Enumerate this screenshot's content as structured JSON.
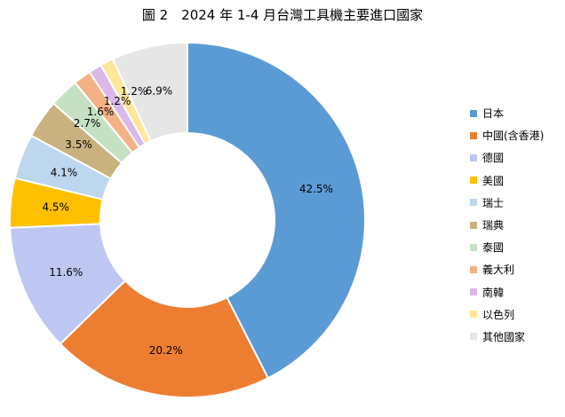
{
  "chart_data": {
    "type": "pie",
    "title": "圖 2　2024 年 1-4 月台灣工具機主要進口國家",
    "categories": [
      "日本",
      "中國(含香港)",
      "德國",
      "美國",
      "瑞士",
      "瑞典",
      "泰國",
      "義大利",
      "南韓",
      "以色列",
      "其他國家"
    ],
    "values": [
      42.5,
      20.2,
      11.6,
      4.5,
      4.1,
      3.5,
      2.7,
      1.6,
      1.2,
      1.2,
      6.9
    ],
    "labels": [
      "42.5%",
      "20.2%",
      "11.6%",
      "4.5%",
      "4.1%",
      "3.5%",
      "2.7%",
      "1.6%",
      "1.2%",
      "1.2%",
      "6.9%"
    ],
    "colors": [
      "#5B9BD5",
      "#ED7D31",
      "#BDC7F2",
      "#FFC000",
      "#BDD7EE",
      "#C9B27F",
      "#C5E0C3",
      "#F4B183",
      "#DDB7E8",
      "#FFE699",
      "#E6E6E6"
    ],
    "legend_position": "right",
    "donut": true
  }
}
